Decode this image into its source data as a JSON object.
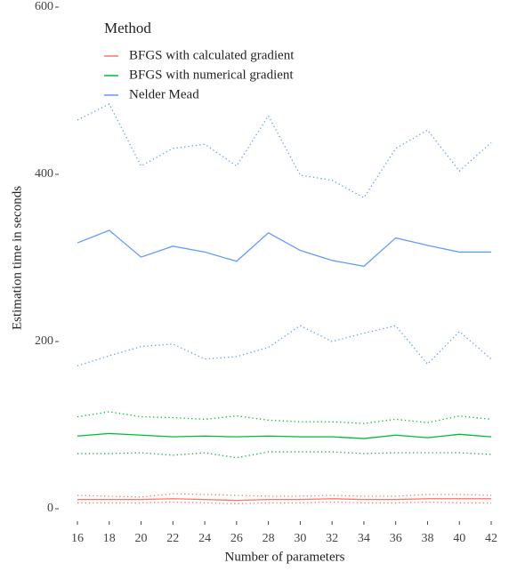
{
  "chart_data": {
    "type": "line",
    "x_label": "Number of parameters",
    "y_label": "Estimation time in seconds",
    "legend_title": "Method",
    "legend_position": "top-left",
    "x": [
      16,
      18,
      20,
      22,
      24,
      26,
      28,
      30,
      32,
      34,
      36,
      38,
      40,
      42
    ],
    "xlim": [
      16,
      42
    ],
    "xticks": [
      16,
      18,
      20,
      22,
      24,
      26,
      28,
      30,
      32,
      34,
      36,
      38,
      40,
      42
    ],
    "ylim": [
      0,
      600
    ],
    "yticks": [
      0,
      200,
      400,
      600
    ],
    "grid": false,
    "series": [
      {
        "name": "BFGS with calculated gradient",
        "color": "#f8766d",
        "values": [
          11,
          11,
          11,
          12,
          11,
          10,
          11,
          11,
          12,
          11,
          11,
          12,
          12,
          12
        ],
        "upper": [
          16,
          15,
          14,
          18,
          17,
          16,
          15,
          15,
          16,
          15,
          15,
          17,
          17,
          16
        ],
        "lower": [
          7,
          7,
          7,
          8,
          7,
          6,
          7,
          7,
          8,
          7,
          7,
          8,
          7,
          7
        ]
      },
      {
        "name": "BFGS with numerical gradient",
        "color": "#00ba38",
        "values": [
          87,
          90,
          88,
          86,
          87,
          86,
          87,
          86,
          86,
          84,
          88,
          85,
          89,
          86
        ],
        "upper": [
          110,
          116,
          110,
          109,
          107,
          111,
          106,
          104,
          104,
          102,
          107,
          103,
          111,
          107
        ],
        "lower": [
          66,
          66,
          67,
          64,
          67,
          61,
          68,
          68,
          68,
          66,
          67,
          67,
          67,
          65
        ]
      },
      {
        "name": "Nelder Mead",
        "color": "#619cff",
        "values": [
          318,
          333,
          301,
          314,
          307,
          296,
          330,
          309,
          297,
          290,
          324,
          315,
          307,
          307
        ],
        "upper": [
          465,
          484,
          410,
          431,
          436,
          410,
          470,
          399,
          393,
          372,
          431,
          453,
          404,
          438
        ],
        "lower": [
          171,
          183,
          194,
          197,
          179,
          182,
          193,
          219,
          200,
          210,
          219,
          173,
          212,
          179
        ]
      }
    ]
  }
}
